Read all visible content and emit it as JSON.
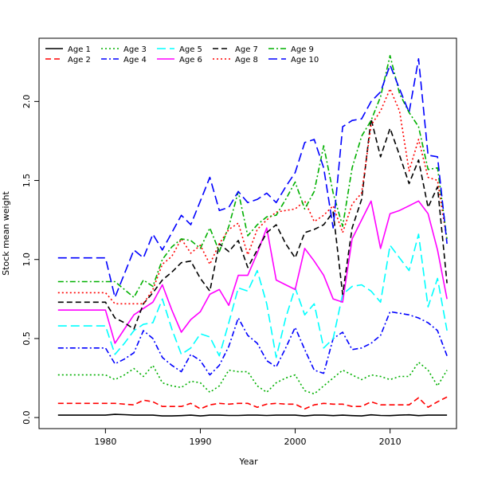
{
  "chart_data": {
    "type": "line",
    "title": "",
    "xlabel": "Year",
    "ylabel": "Stock mean weight",
    "xlim": [
      1973,
      2017
    ],
    "ylim": [
      -0.07,
      2.4
    ],
    "x_ticks": [
      1980,
      1990,
      2000,
      2010
    ],
    "y_ticks": [
      0.0,
      0.5,
      1.0,
      1.5,
      2.0
    ],
    "y_tick_labels": [
      "0.0",
      "0.5",
      "1.0",
      "1.5",
      "2.0"
    ],
    "grid": false,
    "legend_position": "top-left",
    "x": [
      1975,
      1976,
      1977,
      1978,
      1979,
      1980,
      1981,
      1982,
      1983,
      1984,
      1985,
      1986,
      1987,
      1988,
      1989,
      1990,
      1991,
      1992,
      1993,
      1994,
      1995,
      1996,
      1997,
      1998,
      1999,
      2000,
      2001,
      2002,
      2003,
      2004,
      2005,
      2006,
      2007,
      2008,
      2009,
      2010,
      2011,
      2012,
      2013,
      2014,
      2015,
      2016
    ],
    "series": [
      {
        "name": "Age 1",
        "color": "#000000",
        "dash": "solid",
        "values": [
          0.015,
          0.015,
          0.015,
          0.015,
          0.015,
          0.015,
          0.02,
          0.018,
          0.015,
          0.015,
          0.015,
          0.01,
          0.01,
          0.012,
          0.015,
          0.01,
          0.015,
          0.015,
          0.013,
          0.013,
          0.015,
          0.015,
          0.013,
          0.015,
          0.015,
          0.015,
          0.01,
          0.015,
          0.015,
          0.012,
          0.015,
          0.012,
          0.01,
          0.017,
          0.013,
          0.012,
          0.015,
          0.017,
          0.012,
          0.015,
          0.015,
          0.015
        ]
      },
      {
        "name": "Age 2",
        "color": "#ff0000",
        "dash": "dashed",
        "values": [
          0.09,
          0.09,
          0.09,
          0.09,
          0.09,
          0.09,
          0.09,
          0.085,
          0.08,
          0.11,
          0.1,
          0.07,
          0.07,
          0.07,
          0.09,
          0.055,
          0.08,
          0.09,
          0.085,
          0.09,
          0.09,
          0.065,
          0.085,
          0.09,
          0.085,
          0.085,
          0.055,
          0.08,
          0.09,
          0.085,
          0.085,
          0.07,
          0.07,
          0.1,
          0.08,
          0.08,
          0.08,
          0.08,
          0.125,
          0.065,
          0.1,
          0.13
        ]
      },
      {
        "name": "Age 3",
        "color": "#00b000",
        "dash": "dotted",
        "values": [
          0.27,
          0.27,
          0.27,
          0.27,
          0.27,
          0.27,
          0.24,
          0.27,
          0.31,
          0.26,
          0.33,
          0.22,
          0.2,
          0.19,
          0.23,
          0.22,
          0.16,
          0.2,
          0.3,
          0.29,
          0.29,
          0.2,
          0.16,
          0.22,
          0.25,
          0.27,
          0.17,
          0.15,
          0.2,
          0.25,
          0.3,
          0.27,
          0.24,
          0.27,
          0.26,
          0.24,
          0.26,
          0.26,
          0.35,
          0.3,
          0.2,
          0.3
        ]
      },
      {
        "name": "Age 4",
        "color": "#0000ff",
        "dash": "dashdot",
        "values": [
          0.44,
          0.44,
          0.44,
          0.44,
          0.44,
          0.44,
          0.34,
          0.37,
          0.41,
          0.55,
          0.5,
          0.38,
          0.33,
          0.29,
          0.4,
          0.36,
          0.27,
          0.33,
          0.45,
          0.63,
          0.52,
          0.47,
          0.36,
          0.32,
          0.44,
          0.57,
          0.43,
          0.3,
          0.28,
          0.5,
          0.54,
          0.43,
          0.44,
          0.47,
          0.52,
          0.67,
          0.66,
          0.65,
          0.63,
          0.6,
          0.55,
          0.39
        ]
      },
      {
        "name": "Age 5",
        "color": "#00ffff",
        "dash": "longdash",
        "values": [
          0.58,
          0.58,
          0.58,
          0.58,
          0.58,
          0.58,
          0.4,
          0.47,
          0.55,
          0.59,
          0.6,
          0.75,
          0.56,
          0.4,
          0.44,
          0.53,
          0.51,
          0.39,
          0.6,
          0.82,
          0.8,
          0.93,
          0.72,
          0.38,
          0.63,
          0.82,
          0.65,
          0.72,
          0.44,
          0.5,
          0.78,
          0.83,
          0.84,
          0.8,
          0.73,
          1.09,
          1.01,
          0.93,
          1.16,
          0.7,
          0.88,
          0.55
        ]
      },
      {
        "name": "Age 6",
        "color": "#ff00ff",
        "dash": "solid",
        "values": [
          0.68,
          0.68,
          0.68,
          0.68,
          0.68,
          0.68,
          0.47,
          0.56,
          0.65,
          0.69,
          0.73,
          0.84,
          0.68,
          0.54,
          0.62,
          0.67,
          0.78,
          0.81,
          0.71,
          0.9,
          0.9,
          1.04,
          1.2,
          0.87,
          0.84,
          0.81,
          1.07,
          0.99,
          0.9,
          0.75,
          0.73,
          1.13,
          1.25,
          1.37,
          1.07,
          1.29,
          1.31,
          1.34,
          1.37,
          1.29,
          1.06,
          0.75
        ]
      },
      {
        "name": "Age 7",
        "color": "#000000",
        "dash": "dashed",
        "values": [
          0.73,
          0.73,
          0.73,
          0.73,
          0.73,
          0.73,
          0.63,
          0.6,
          0.56,
          0.72,
          0.79,
          0.87,
          0.92,
          0.98,
          0.99,
          0.88,
          0.8,
          1.1,
          1.05,
          1.12,
          0.95,
          1.06,
          1.17,
          1.22,
          1.1,
          1.01,
          1.17,
          1.19,
          1.22,
          1.3,
          0.78,
          1.2,
          1.38,
          1.89,
          1.65,
          1.83,
          1.66,
          1.48,
          1.63,
          1.33,
          1.46,
          0.85
        ]
      },
      {
        "name": "Age 8",
        "color": "#ff0000",
        "dash": "dotted",
        "values": [
          0.79,
          0.79,
          0.79,
          0.79,
          0.79,
          0.79,
          0.72,
          0.72,
          0.72,
          0.72,
          0.81,
          0.97,
          1.02,
          1.13,
          1.04,
          1.09,
          0.97,
          1.1,
          1.19,
          1.23,
          1.03,
          1.19,
          1.25,
          1.3,
          1.31,
          1.32,
          1.37,
          1.24,
          1.28,
          1.34,
          1.17,
          1.35,
          1.42,
          1.85,
          1.94,
          2.08,
          1.94,
          1.56,
          1.76,
          1.52,
          1.5,
          1.12
        ]
      },
      {
        "name": "Age 9",
        "color": "#00b000",
        "dash": "dashdot",
        "values": [
          0.86,
          0.86,
          0.86,
          0.86,
          0.86,
          0.86,
          0.86,
          0.81,
          0.76,
          0.87,
          0.83,
          1.0,
          1.08,
          1.13,
          1.12,
          1.07,
          1.2,
          1.05,
          1.21,
          1.43,
          1.15,
          1.22,
          1.27,
          1.28,
          1.38,
          1.49,
          1.32,
          1.43,
          1.72,
          1.42,
          1.21,
          1.58,
          1.78,
          1.88,
          2.03,
          2.29,
          2.05,
          1.93,
          1.84,
          1.57,
          1.58,
          1.13
        ]
      },
      {
        "name": "Age 10",
        "color": "#0000ff",
        "dash": "longdash",
        "values": [
          1.01,
          1.01,
          1.01,
          1.01,
          1.01,
          1.01,
          0.76,
          0.91,
          1.06,
          1.01,
          1.16,
          1.06,
          1.17,
          1.28,
          1.22,
          1.37,
          1.52,
          1.31,
          1.33,
          1.43,
          1.36,
          1.38,
          1.42,
          1.36,
          1.46,
          1.55,
          1.74,
          1.76,
          1.58,
          1.2,
          1.84,
          1.88,
          1.89,
          2.0,
          2.06,
          2.23,
          2.08,
          1.93,
          2.27,
          1.66,
          1.65,
          1.1
        ]
      }
    ]
  }
}
